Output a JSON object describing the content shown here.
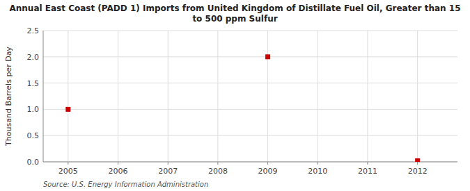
{
  "chart_data": {
    "type": "scatter",
    "title": "Annual East Coast (PADD 1) Imports from United Kingdom of Distillate Fuel Oil, Greater than 15\nto 500 ppm Sulfur",
    "ylabel": "Thousand Barrels per Day",
    "source": "Source: U.S. Energy Information Administration",
    "x": [
      2005,
      2009,
      2012
    ],
    "values": [
      1.0,
      2.0,
      0.02
    ],
    "color": "#cc0000",
    "marker": "square",
    "xlim": [
      2004.5,
      2012.8
    ],
    "ylim": [
      0.0,
      2.5
    ],
    "xticks": [
      2005,
      2006,
      2007,
      2008,
      2009,
      2010,
      2011,
      2012
    ],
    "yticks": [
      {
        "value": 0.0,
        "label": "0.0"
      },
      0.5,
      {
        "value": 1.0,
        "label": "1.0"
      },
      1.5,
      {
        "value": 2.0,
        "label": "2.0"
      },
      2.5
    ],
    "grid": true
  }
}
